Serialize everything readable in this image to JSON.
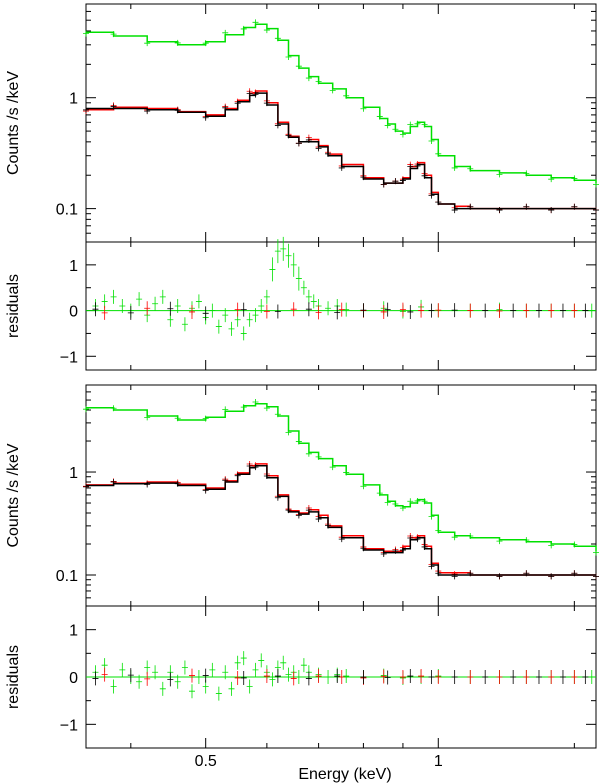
{
  "figure": {
    "xlabel": "Energy (keV)",
    "x_scale": "log",
    "xlim": [
      0.35,
      1.6
    ]
  },
  "chart_data": [
    {
      "type": "line",
      "panel": "top spectrum",
      "ylabel": "Counts /s /keV",
      "y_scale": "log",
      "ylim": [
        0.05,
        7
      ],
      "y_ticks": [
        {
          "v": 0.1,
          "label": "0.1"
        },
        {
          "v": 1,
          "label": "1"
        }
      ],
      "series": [
        {
          "color": "#00e000",
          "style": "step",
          "x": [
            0.35,
            0.38,
            0.42,
            0.46,
            0.5,
            0.53,
            0.56,
            0.58,
            0.6,
            0.62,
            0.64,
            0.66,
            0.68,
            0.7,
            0.73,
            0.76,
            0.8,
            0.84,
            0.86,
            0.88,
            0.9,
            0.92,
            0.94,
            0.96,
            0.98,
            1.0,
            1.05,
            1.1,
            1.2,
            1.3,
            1.4,
            1.5,
            1.6
          ],
          "y": [
            3.9,
            3.6,
            3.2,
            3.0,
            3.2,
            3.7,
            4.3,
            4.6,
            4.2,
            3.3,
            2.4,
            1.85,
            1.55,
            1.35,
            1.2,
            1.0,
            0.82,
            0.65,
            0.58,
            0.5,
            0.48,
            0.55,
            0.6,
            0.55,
            0.42,
            0.3,
            0.24,
            0.22,
            0.21,
            0.2,
            0.19,
            0.18,
            0.17
          ]
        },
        {
          "color": "#ff0000",
          "style": "step",
          "x": [
            0.35,
            0.38,
            0.42,
            0.46,
            0.5,
            0.53,
            0.55,
            0.57,
            0.58,
            0.6,
            0.62,
            0.64,
            0.66,
            0.68,
            0.7,
            0.72,
            0.75,
            0.8,
            0.85,
            0.88,
            0.9,
            0.92,
            0.94,
            0.96,
            0.98,
            1.0,
            1.05,
            1.1,
            1.2,
            1.3,
            1.4,
            1.5,
            1.6
          ],
          "y": [
            0.78,
            0.82,
            0.8,
            0.75,
            0.7,
            0.8,
            0.95,
            1.1,
            1.15,
            0.9,
            0.6,
            0.45,
            0.4,
            0.42,
            0.37,
            0.31,
            0.25,
            0.19,
            0.17,
            0.17,
            0.19,
            0.24,
            0.26,
            0.2,
            0.14,
            0.11,
            0.105,
            0.1,
            0.1,
            0.1,
            0.1,
            0.1,
            0.1
          ]
        },
        {
          "color": "#000000",
          "style": "step",
          "x": [
            0.35,
            0.38,
            0.42,
            0.46,
            0.5,
            0.53,
            0.55,
            0.57,
            0.58,
            0.6,
            0.62,
            0.64,
            0.66,
            0.68,
            0.7,
            0.72,
            0.75,
            0.8,
            0.85,
            0.88,
            0.9,
            0.92,
            0.94,
            0.96,
            0.98,
            1.0,
            1.05,
            1.1,
            1.2,
            1.3,
            1.4,
            1.5,
            1.6
          ],
          "y": [
            0.8,
            0.8,
            0.78,
            0.74,
            0.68,
            0.78,
            0.92,
            1.05,
            1.1,
            0.86,
            0.58,
            0.44,
            0.4,
            0.4,
            0.36,
            0.3,
            0.24,
            0.185,
            0.17,
            0.17,
            0.185,
            0.23,
            0.25,
            0.19,
            0.135,
            0.11,
            0.1,
            0.1,
            0.1,
            0.1,
            0.1,
            0.1,
            0.1
          ]
        }
      ]
    },
    {
      "type": "scatter",
      "panel": "top residuals",
      "ylabel": "residuals",
      "y_scale": "linear",
      "ylim": [
        -1.3,
        1.5
      ],
      "y_ticks": [
        {
          "v": -1,
          "label": "−1"
        },
        {
          "v": 0,
          "label": "0"
        },
        {
          "v": 1,
          "label": "1"
        }
      ],
      "zero_line": true,
      "series": [
        {
          "color": "#00e000",
          "x": [
            0.36,
            0.37,
            0.38,
            0.39,
            0.4,
            0.41,
            0.42,
            0.43,
            0.44,
            0.45,
            0.46,
            0.47,
            0.48,
            0.49,
            0.5,
            0.51,
            0.52,
            0.53,
            0.54,
            0.55,
            0.56,
            0.57,
            0.58,
            0.59,
            0.6,
            0.61,
            0.62,
            0.63,
            0.64,
            0.65,
            0.66,
            0.67,
            0.68,
            0.69,
            0.7,
            0.72,
            0.74,
            0.76,
            0.8,
            0.85,
            0.9,
            0.95,
            1.0,
            1.1,
            1.2,
            1.3,
            1.4,
            1.5,
            1.58
          ],
          "y": [
            0.1,
            0.2,
            0.3,
            0.1,
            0.0,
            0.25,
            -0.1,
            0.15,
            0.3,
            -0.2,
            0.1,
            -0.3,
            0.05,
            0.2,
            -0.15,
            0.0,
            -0.35,
            -0.1,
            -0.4,
            -0.2,
            -0.5,
            -0.2,
            -0.1,
            0.1,
            0.3,
            0.9,
            1.3,
            1.35,
            1.2,
            1.0,
            0.7,
            0.5,
            0.3,
            0.2,
            0.1,
            0.05,
            0.1,
            0.02,
            0.0,
            0.05,
            -0.02,
            0.08,
            0.0,
            0.0,
            0.02,
            0.0,
            0.0,
            0.0,
            0.0
          ]
        },
        {
          "color": "#ff0000",
          "x": [
            0.37,
            0.42,
            0.48,
            0.55,
            0.6,
            0.65,
            0.7,
            0.75,
            0.8,
            0.85,
            0.9,
            0.95,
            1.0,
            1.1,
            1.2,
            1.3,
            1.4,
            1.5
          ],
          "y": [
            -0.05,
            0.05,
            -0.03,
            0.02,
            -0.02,
            0.03,
            -0.04,
            0.02,
            0.0,
            -0.03,
            0.02,
            0.0,
            0.01,
            0.0,
            -0.01,
            0.0,
            0.0,
            0.0
          ]
        },
        {
          "color": "#000000",
          "x": [
            0.36,
            0.4,
            0.45,
            0.5,
            0.56,
            0.62,
            0.68,
            0.74,
            0.8,
            0.86,
            0.92,
            0.98,
            1.05,
            1.15,
            1.25,
            1.35,
            1.45,
            1.55
          ],
          "y": [
            0.03,
            -0.05,
            0.04,
            -0.06,
            0.02,
            -0.02,
            0.03,
            -0.04,
            0.01,
            0.02,
            -0.03,
            0.0,
            0.01,
            0.0,
            0.0,
            0.0,
            0.0,
            0.0
          ]
        }
      ]
    },
    {
      "type": "line",
      "panel": "bottom spectrum",
      "ylabel": "Counts /s /keV",
      "y_scale": "log",
      "ylim": [
        0.05,
        7
      ],
      "y_ticks": [
        {
          "v": 0.1,
          "label": "0.1"
        },
        {
          "v": 1,
          "label": "1"
        }
      ],
      "series": [
        {
          "color": "#00e000",
          "style": "step",
          "x": [
            0.35,
            0.38,
            0.42,
            0.46,
            0.5,
            0.53,
            0.56,
            0.58,
            0.6,
            0.62,
            0.64,
            0.66,
            0.68,
            0.7,
            0.73,
            0.76,
            0.8,
            0.84,
            0.86,
            0.88,
            0.9,
            0.92,
            0.94,
            0.96,
            0.98,
            1.0,
            1.05,
            1.1,
            1.2,
            1.3,
            1.4,
            1.5,
            1.6
          ],
          "y": [
            4.2,
            4.0,
            3.5,
            3.2,
            3.4,
            3.9,
            4.4,
            4.6,
            4.3,
            3.5,
            2.5,
            1.9,
            1.55,
            1.35,
            1.15,
            0.95,
            0.75,
            0.6,
            0.52,
            0.47,
            0.46,
            0.5,
            0.54,
            0.5,
            0.38,
            0.26,
            0.24,
            0.23,
            0.22,
            0.21,
            0.2,
            0.19,
            0.17
          ]
        },
        {
          "color": "#ff0000",
          "style": "step",
          "x": [
            0.35,
            0.38,
            0.42,
            0.46,
            0.5,
            0.53,
            0.55,
            0.57,
            0.58,
            0.6,
            0.62,
            0.64,
            0.66,
            0.68,
            0.7,
            0.72,
            0.75,
            0.8,
            0.85,
            0.88,
            0.9,
            0.92,
            0.94,
            0.96,
            0.98,
            1.0,
            1.05,
            1.1,
            1.2,
            1.3,
            1.4,
            1.5,
            1.6
          ],
          "y": [
            0.75,
            0.78,
            0.8,
            0.76,
            0.7,
            0.82,
            0.98,
            1.15,
            1.2,
            0.92,
            0.6,
            0.42,
            0.4,
            0.43,
            0.38,
            0.3,
            0.24,
            0.18,
            0.17,
            0.17,
            0.19,
            0.23,
            0.24,
            0.19,
            0.13,
            0.105,
            0.105,
            0.1,
            0.1,
            0.1,
            0.1,
            0.1,
            0.1
          ]
        },
        {
          "color": "#000000",
          "style": "step",
          "x": [
            0.35,
            0.38,
            0.42,
            0.46,
            0.5,
            0.53,
            0.55,
            0.57,
            0.58,
            0.6,
            0.62,
            0.64,
            0.66,
            0.68,
            0.7,
            0.72,
            0.75,
            0.8,
            0.85,
            0.88,
            0.9,
            0.92,
            0.94,
            0.96,
            0.98,
            1.0,
            1.05,
            1.1,
            1.2,
            1.3,
            1.4,
            1.5,
            1.6
          ],
          "y": [
            0.74,
            0.77,
            0.78,
            0.74,
            0.68,
            0.8,
            0.95,
            1.1,
            1.15,
            0.88,
            0.58,
            0.41,
            0.39,
            0.41,
            0.36,
            0.29,
            0.23,
            0.175,
            0.165,
            0.165,
            0.18,
            0.22,
            0.23,
            0.18,
            0.125,
            0.1,
            0.1,
            0.1,
            0.1,
            0.1,
            0.1,
            0.1,
            0.1
          ]
        }
      ]
    },
    {
      "type": "scatter",
      "panel": "bottom residuals",
      "ylabel": "residuals",
      "y_scale": "linear",
      "ylim": [
        -1.5,
        1.5
      ],
      "y_ticks": [
        {
          "v": -1,
          "label": "−1"
        },
        {
          "v": 0,
          "label": "0"
        },
        {
          "v": 1,
          "label": "1"
        }
      ],
      "zero_line": true,
      "series": [
        {
          "color": "#00e000",
          "x": [
            0.36,
            0.37,
            0.38,
            0.39,
            0.4,
            0.41,
            0.42,
            0.43,
            0.44,
            0.45,
            0.46,
            0.47,
            0.48,
            0.49,
            0.5,
            0.51,
            0.52,
            0.53,
            0.54,
            0.55,
            0.56,
            0.57,
            0.58,
            0.59,
            0.6,
            0.61,
            0.62,
            0.63,
            0.64,
            0.65,
            0.66,
            0.67,
            0.68,
            0.7,
            0.72,
            0.74,
            0.76,
            0.8,
            0.85,
            0.9,
            0.95,
            1.0,
            1.1,
            1.2,
            1.3,
            1.4,
            1.5,
            1.58
          ],
          "y": [
            0.1,
            0.25,
            -0.2,
            0.15,
            0.0,
            -0.1,
            0.2,
            0.1,
            -0.25,
            0.1,
            -0.1,
            0.2,
            -0.3,
            0.0,
            -0.2,
            0.15,
            -0.35,
            0.1,
            -0.25,
            0.3,
            0.4,
            -0.2,
            0.15,
            0.35,
            0.1,
            -0.05,
            0.2,
            0.3,
            0.05,
            0.1,
            0.0,
            0.25,
            0.1,
            0.05,
            0.0,
            0.05,
            0.02,
            0.0,
            0.03,
            -0.02,
            0.0,
            0.02,
            0.0,
            0.0,
            0.0,
            0.0,
            0.0,
            0.0
          ]
        },
        {
          "color": "#ff0000",
          "x": [
            0.37,
            0.42,
            0.48,
            0.55,
            0.6,
            0.65,
            0.7,
            0.75,
            0.8,
            0.85,
            0.9,
            0.95,
            1.0,
            1.1,
            1.2,
            1.3,
            1.4,
            1.5
          ],
          "y": [
            0.05,
            -0.04,
            0.03,
            -0.02,
            0.02,
            -0.03,
            0.02,
            0.0,
            -0.02,
            0.01,
            0.0,
            0.02,
            0.0,
            0.0,
            0.0,
            0.0,
            0.0,
            0.0
          ]
        },
        {
          "color": "#000000",
          "x": [
            0.36,
            0.4,
            0.45,
            0.5,
            0.56,
            0.62,
            0.68,
            0.74,
            0.8,
            0.86,
            0.92,
            0.98,
            1.05,
            1.15,
            1.25,
            1.35,
            1.45,
            1.55
          ],
          "y": [
            -0.03,
            0.04,
            -0.05,
            0.03,
            -0.02,
            0.02,
            -0.03,
            0.02,
            0.0,
            -0.01,
            0.02,
            0.0,
            0.0,
            0.0,
            0.0,
            0.0,
            0.0,
            0.0
          ]
        }
      ]
    }
  ],
  "x_ticks": [
    {
      "v": 0.5,
      "label": "0.5"
    },
    {
      "v": 1,
      "label": "1"
    }
  ]
}
